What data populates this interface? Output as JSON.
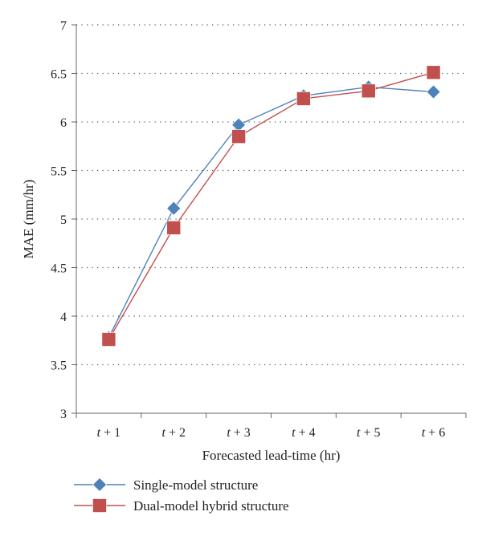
{
  "chart_data": {
    "type": "line",
    "categories": [
      "t + 1",
      "t + 2",
      "t + 3",
      "t + 4",
      "t + 5",
      "t + 6"
    ],
    "series": [
      {
        "name": "Single-model structure",
        "values": [
          3.78,
          5.11,
          5.97,
          6.27,
          6.36,
          6.31
        ],
        "color": "#4f81bd",
        "marker": "diamond"
      },
      {
        "name": "Dual-model hybrid structure",
        "values": [
          3.76,
          4.91,
          5.85,
          6.24,
          6.32,
          6.51
        ],
        "color": "#c0504d",
        "marker": "square"
      }
    ],
    "title": "",
    "xlabel": "Forecasted lead-time (hr)",
    "ylabel": "MAE (mm/hr)",
    "ylim": [
      3,
      7
    ],
    "yticks": [
      "3",
      "3.5",
      "4",
      "4.5",
      "5",
      "5.5",
      "6",
      "6.5",
      "7"
    ],
    "grid": "horizontal-dotted",
    "legend_position": "bottom-left"
  }
}
